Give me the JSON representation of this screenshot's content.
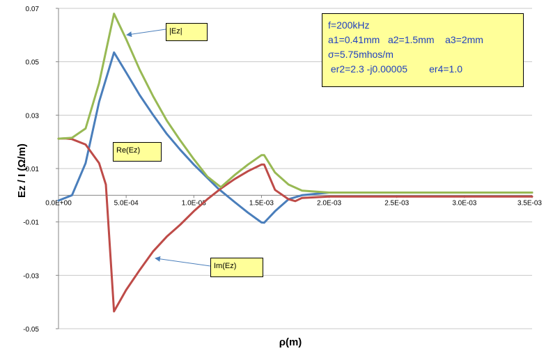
{
  "chart_data": {
    "type": "line",
    "xlabel": "ρ(m)",
    "ylabel": "Ez  /  I   (Ω/m)",
    "xlim": [
      0,
      0.0035
    ],
    "ylim": [
      -0.05,
      0.07
    ],
    "x_ticks": [
      "0.0E+00",
      "5.0E-04",
      "1.0E-03",
      "1.5E-03",
      "2.0E-03",
      "2.5E-03",
      "3.0E-03",
      "3.5E-03"
    ],
    "y_ticks": [
      "0.07",
      "0.05",
      "0.03",
      "0.01",
      "-0.01",
      "-0.03",
      "-0.05"
    ],
    "grid": "horizontal",
    "series": [
      {
        "name": "Re(Ez)",
        "color": "#4a7ebb",
        "points": [
          [
            0,
            -0.002
          ],
          [
            0.0001,
            0.0
          ],
          [
            0.0002,
            0.012
          ],
          [
            0.0003,
            0.035
          ],
          [
            0.00041,
            0.0535
          ],
          [
            0.0005,
            0.046
          ],
          [
            0.0006,
            0.0375
          ],
          [
            0.0007,
            0.03
          ],
          [
            0.0008,
            0.023
          ],
          [
            0.0009,
            0.017
          ],
          [
            0.001,
            0.0115
          ],
          [
            0.0011,
            0.0065
          ],
          [
            0.00118,
            0.0025
          ],
          [
            0.0013,
            -0.0025
          ],
          [
            0.0014,
            -0.0065
          ],
          [
            0.0015,
            -0.0102
          ],
          [
            0.00152,
            -0.0103
          ],
          [
            0.0016,
            -0.006
          ],
          [
            0.0017,
            -0.0015
          ],
          [
            0.0018,
            0.0
          ],
          [
            0.002,
            0.001
          ],
          [
            0.0025,
            0.001
          ],
          [
            0.003,
            0.001
          ],
          [
            0.0035,
            0.001
          ]
        ]
      },
      {
        "name": "Im(Ez)",
        "color": "#be4b48",
        "points": [
          [
            0,
            0.0212
          ],
          [
            5e-05,
            0.0213
          ],
          [
            0.0001,
            0.021
          ],
          [
            0.0002,
            0.019
          ],
          [
            0.0003,
            0.012
          ],
          [
            0.00035,
            0.004
          ],
          [
            0.00041,
            -0.0435
          ],
          [
            0.0005,
            -0.0355
          ],
          [
            0.0006,
            -0.028
          ],
          [
            0.0007,
            -0.021
          ],
          [
            0.0008,
            -0.0155
          ],
          [
            0.0009,
            -0.011
          ],
          [
            0.001,
            -0.006
          ],
          [
            0.0011,
            -0.0015
          ],
          [
            0.0012,
            0.0025
          ],
          [
            0.0013,
            0.006
          ],
          [
            0.0014,
            0.009
          ],
          [
            0.0015,
            0.0115
          ],
          [
            0.00152,
            0.0115
          ],
          [
            0.0016,
            0.002
          ],
          [
            0.0017,
            -0.0015
          ],
          [
            0.00175,
            -0.0022
          ],
          [
            0.0018,
            -0.001
          ],
          [
            0.002,
            -0.0005
          ],
          [
            0.0025,
            -0.0005
          ],
          [
            0.003,
            -0.0005
          ],
          [
            0.0035,
            -0.0005
          ]
        ]
      },
      {
        "name": "|Ez|",
        "color": "#98b954",
        "points": [
          [
            0,
            0.0212
          ],
          [
            0.0001,
            0.0215
          ],
          [
            0.0002,
            0.025
          ],
          [
            0.0003,
            0.042
          ],
          [
            0.00041,
            0.068
          ],
          [
            0.0005,
            0.0585
          ],
          [
            0.0006,
            0.047
          ],
          [
            0.0007,
            0.037
          ],
          [
            0.0008,
            0.028
          ],
          [
            0.0009,
            0.0205
          ],
          [
            0.001,
            0.0135
          ],
          [
            0.0011,
            0.007
          ],
          [
            0.0012,
            0.003
          ],
          [
            0.0013,
            0.0075
          ],
          [
            0.0014,
            0.0115
          ],
          [
            0.0015,
            0.015
          ],
          [
            0.00152,
            0.015
          ],
          [
            0.0016,
            0.0085
          ],
          [
            0.0017,
            0.004
          ],
          [
            0.0018,
            0.0017
          ],
          [
            0.002,
            0.001
          ],
          [
            0.0025,
            0.001
          ],
          [
            0.003,
            0.001
          ],
          [
            0.0035,
            0.001
          ]
        ]
      }
    ],
    "annotations": {
      "info": [
        "f=200kHz",
        "a1=0.41mm   a2=1.5mm    a3=2mm",
        "σ=5.75mhos/m",
        " er2=2.3 -j0.00005        er4=1.0"
      ],
      "abs_label": "|Ez|",
      "re_label": "Re(Ez)",
      "im_label": "Im(Ez)"
    }
  }
}
